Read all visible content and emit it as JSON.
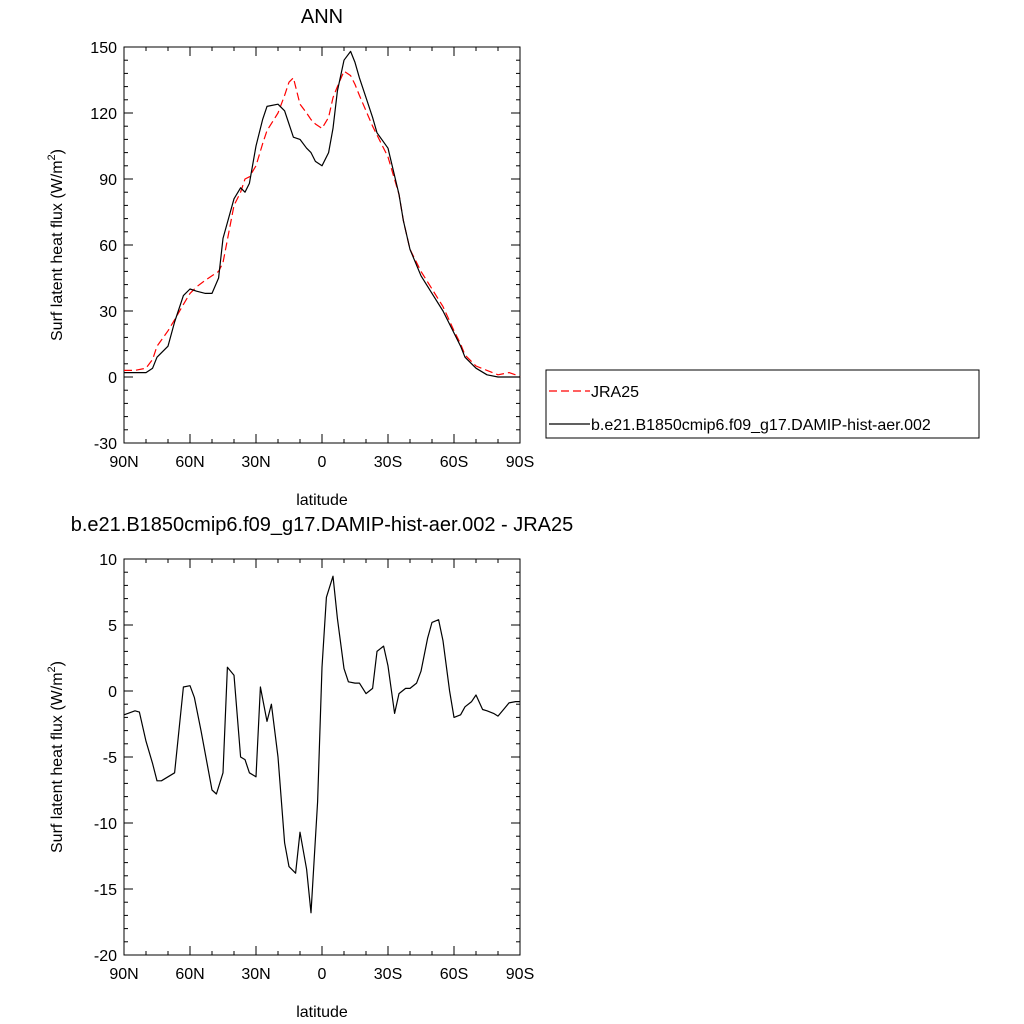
{
  "chart_data": [
    {
      "type": "line",
      "title": "ANN",
      "xlabel": "latitude",
      "ylabel": "Surf latent heat flux (W/m",
      "ylabel_sup": "2",
      "ylabel_close": ")",
      "xlim": [
        90,
        -90
      ],
      "ylim": [
        -30,
        150
      ],
      "yticks": [
        -30,
        0,
        30,
        60,
        90,
        120,
        150
      ],
      "ytick_labels": [
        "-30",
        "0",
        "30",
        "60",
        "90",
        "120",
        "150"
      ],
      "xticks": [
        90,
        60,
        30,
        0,
        -30,
        -60,
        -90
      ],
      "xtick_labels": [
        "90N",
        "60N",
        "30N",
        "0",
        "30S",
        "60S",
        "90S"
      ],
      "legend": "right",
      "series": [
        {
          "name": "JRA25",
          "color": "#ff0000",
          "dash": "dashed",
          "x": [
            90,
            85,
            80,
            77,
            75,
            70,
            67,
            63,
            60,
            57,
            53,
            50,
            47,
            45,
            40,
            37,
            35,
            33,
            30,
            27,
            25,
            20,
            17,
            15,
            13,
            10,
            7,
            5,
            3,
            0,
            -3,
            -5,
            -7,
            -10,
            -13,
            -15,
            -17,
            -20,
            -23,
            -25,
            -30,
            -35,
            -37,
            -40,
            -45,
            -50,
            -55,
            -60,
            -63,
            -65,
            -70,
            -75,
            -80,
            -85,
            -88,
            -90
          ],
          "y": [
            3,
            3,
            4,
            8,
            14,
            21,
            26,
            33,
            38,
            41,
            44,
            46,
            48,
            52,
            78,
            84,
            90,
            91,
            96,
            106,
            112,
            120,
            128,
            134,
            136,
            124,
            120,
            117,
            115,
            113,
            118,
            127,
            132,
            139,
            137,
            133,
            128,
            121,
            114,
            110,
            100,
            83,
            71,
            58,
            48,
            40,
            32,
            21,
            15,
            10,
            5,
            3,
            1,
            2,
            1,
            0
          ]
        },
        {
          "name": "b.e21.B1850cmip6.f09_g17.DAMIP-hist-aer.002",
          "color": "#000000",
          "dash": "solid",
          "x": [
            90,
            85,
            80,
            77,
            75,
            70,
            67,
            63,
            60,
            57,
            53,
            50,
            47,
            45,
            40,
            37,
            35,
            33,
            30,
            27,
            25,
            20,
            17,
            15,
            13,
            10,
            7,
            5,
            3,
            0,
            -3,
            -5,
            -7,
            -10,
            -13,
            -15,
            -17,
            -20,
            -23,
            -25,
            -30,
            -35,
            -37,
            -40,
            -45,
            -50,
            -55,
            -60,
            -63,
            -65,
            -70,
            -75,
            -80,
            -85,
            -88,
            -90
          ],
          "y": [
            2,
            2,
            2,
            4,
            9,
            14,
            25,
            37,
            40,
            39,
            38,
            38,
            45,
            63,
            81,
            86,
            84,
            88,
            105,
            117,
            123,
            124,
            121,
            115,
            109,
            108,
            104,
            102,
            98,
            96,
            102,
            113,
            130,
            144,
            148,
            143,
            136,
            127,
            118,
            111,
            104,
            83,
            71,
            58,
            46,
            38,
            30,
            20,
            14,
            9,
            4,
            1,
            0,
            0,
            0,
            0
          ]
        }
      ]
    },
    {
      "type": "line",
      "title": "b.e21.B1850cmip6.f09_g17.DAMIP-hist-aer.002 - JRA25",
      "xlabel": "latitude",
      "ylabel": "Surf latent heat flux (W/m",
      "ylabel_sup": "2",
      "ylabel_close": ")",
      "xlim": [
        90,
        -90
      ],
      "ylim": [
        -20,
        10
      ],
      "yticks": [
        -20,
        -15,
        -10,
        -5,
        0,
        5,
        10
      ],
      "ytick_labels": [
        "-20",
        "-15",
        "-10",
        "-5",
        "0",
        "5",
        "10"
      ],
      "xticks": [
        90,
        60,
        30,
        0,
        -30,
        -60,
        -90
      ],
      "xtick_labels": [
        "90N",
        "60N",
        "30N",
        "0",
        "30S",
        "60S",
        "90S"
      ],
      "series": [
        {
          "color": "#000000",
          "dash": "solid",
          "x": [
            90,
            85,
            83,
            80,
            77,
            75,
            73,
            70,
            67,
            63,
            60,
            58,
            55,
            50,
            48,
            45,
            43,
            40,
            37,
            35,
            33,
            30,
            28,
            25,
            23,
            20,
            17,
            15,
            12,
            10,
            7,
            5,
            2,
            0,
            -2,
            -5,
            -7,
            -10,
            -12,
            -15,
            -17,
            -20,
            -23,
            -25,
            -28,
            -30,
            -33,
            -35,
            -38,
            -40,
            -43,
            -45,
            -48,
            -50,
            -53,
            -55,
            -58,
            -60,
            -63,
            -65,
            -68,
            -70,
            -73,
            -75,
            -78,
            -80,
            -83,
            -85,
            -88,
            -90
          ],
          "y": [
            -1.8,
            -1.5,
            -1.6,
            -3.8,
            -5.5,
            -6.8,
            -6.8,
            -6.5,
            -6.2,
            0.3,
            0.4,
            -0.5,
            -3.0,
            -7.5,
            -7.8,
            -6.2,
            1.8,
            1.2,
            -5.0,
            -5.2,
            -6.2,
            -6.5,
            0.3,
            -2.3,
            -1.0,
            -5.0,
            -11.5,
            -13.3,
            -13.8,
            -10.7,
            -13.5,
            -16.8,
            -8.4,
            1.8,
            7.1,
            8.7,
            5.5,
            1.7,
            0.7,
            0.6,
            0.6,
            -0.2,
            0.2,
            3.0,
            3.4,
            1.9,
            -1.7,
            -0.2,
            0.2,
            0.2,
            0.6,
            1.5,
            4.0,
            5.2,
            5.4,
            3.8,
            0.0,
            -2.0,
            -1.8,
            -1.2,
            -0.8,
            -0.3,
            -1.4,
            -1.5,
            -1.7,
            -1.9,
            -1.3,
            -0.9,
            -0.8,
            -0.8
          ]
        }
      ]
    }
  ]
}
